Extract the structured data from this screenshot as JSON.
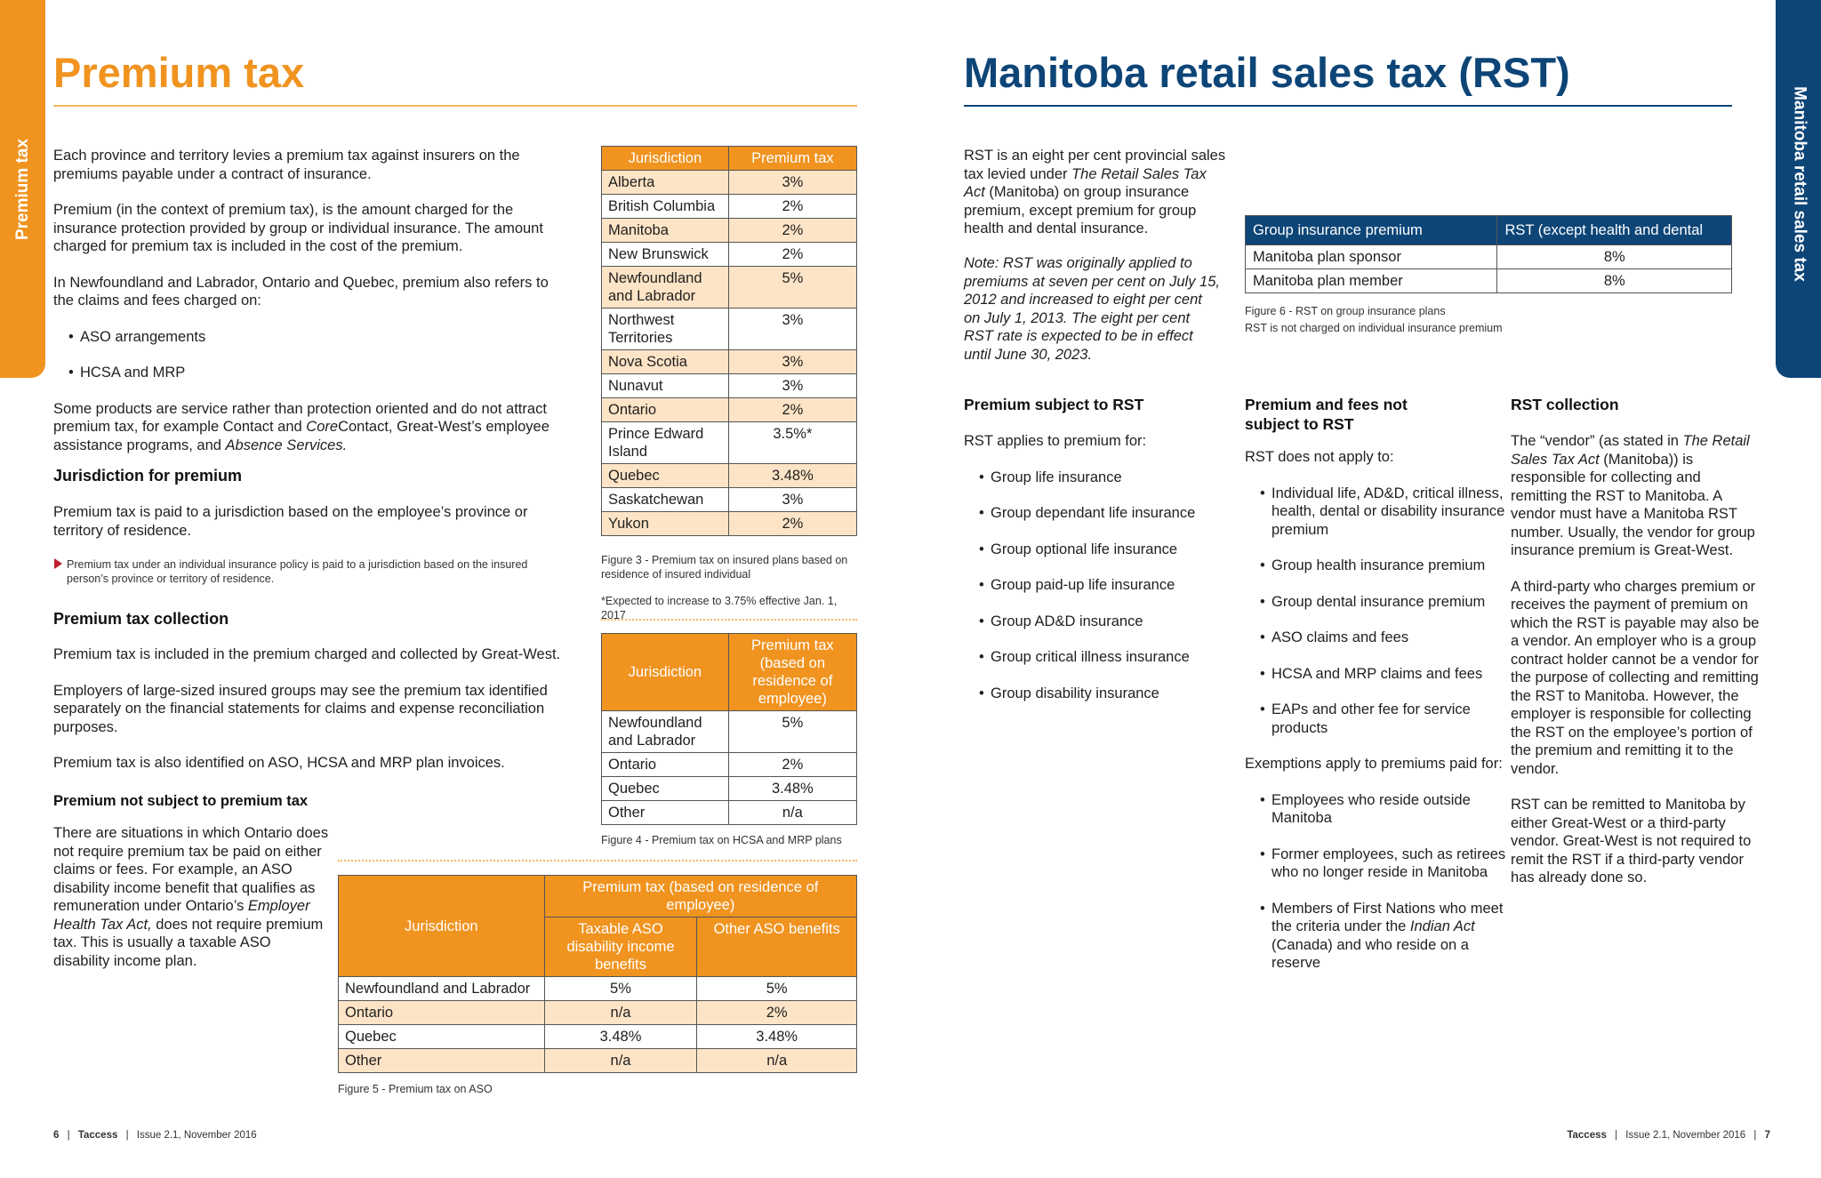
{
  "left_page": {
    "side_tab": "Premium tax",
    "title": "Premium tax",
    "intro": [
      "Each province and territory levies a premium tax against insurers on the premiums payable under a contract of insurance.",
      "Premium (in the context of premium tax), is the amount charged for the insurance protection provided by group or individual insurance. The amount charged for premium tax is included in the cost of the premium.",
      "In Newfoundland and Labrador, Ontario and Quebec, premium also refers to the claims and fees charged on:"
    ],
    "bullets": [
      "ASO arrangements",
      "HCSA and MRP"
    ],
    "products_para": {
      "a": "Some products are service rather than protection oriented and do not attract premium tax, for example Contact and ",
      "b": "Core",
      "c": "Contact, Great-West’s employee assistance programs, and ",
      "d": "Absence Services."
    },
    "jurisdiction_heading": "Jurisdiction for premium",
    "jurisdiction_para": "Premium tax is paid to a jurisdiction based on the employee’s province or territory of residence.",
    "jurisdiction_note": "Premium tax under an individual insurance policy is paid to a jurisdiction based on the insured person’s province or territory of residence.",
    "collection_heading": "Premium tax collection",
    "collection_paras": [
      "Premium tax is included in the premium charged and collected by Great-West.",
      "Employers of large-sized insured groups may see the premium tax identified separately on the financial statements for claims and expense reconciliation purposes.",
      "Premium tax is also identified on ASO, HCSA and MRP plan invoices."
    ],
    "not_subject_heading": "Premium not subject to premium tax",
    "not_subject_para": {
      "a": "There are situations in which Ontario does not require premium tax be paid on either claims or fees. For example, an ASO disability income benefit that qualifies as remuneration under Ontario’s ",
      "b": "Employer Health Tax Act,",
      "c": " does not require premium tax. This is usually a taxable ASO disability income plan."
    },
    "table3": {
      "headers": [
        "Jurisdiction",
        "Premium tax"
      ],
      "rows": [
        [
          "Alberta",
          "3%"
        ],
        [
          "British Columbia",
          "2%"
        ],
        [
          "Manitoba",
          "2%"
        ],
        [
          "New Brunswick",
          "2%"
        ],
        [
          "Newfoundland and Labrador",
          "5%"
        ],
        [
          "Northwest Territories",
          "3%"
        ],
        [
          "Nova Scotia",
          "3%"
        ],
        [
          "Nunavut",
          "3%"
        ],
        [
          "Ontario",
          "2%"
        ],
        [
          "Prince Edward Island",
          "3.5%*"
        ],
        [
          "Quebec",
          "3.48%"
        ],
        [
          "Saskatchewan",
          "3%"
        ],
        [
          "Yukon",
          "2%"
        ]
      ],
      "caption": "Figure 3 - Premium tax on insured plans based on residence of insured individual",
      "footnote": "*Expected to increase to 3.75% effective Jan. 1, 2017"
    },
    "table4": {
      "headers": [
        "Jurisdiction",
        "Premium tax (based on residence of employee)"
      ],
      "rows": [
        [
          "Newfoundland and Labrador",
          "5%"
        ],
        [
          "Ontario",
          "2%"
        ],
        [
          "Quebec",
          "3.48%"
        ],
        [
          "Other",
          "n/a"
        ]
      ],
      "caption": "Figure 4 - Premium tax on HCSA and MRP plans"
    },
    "table5": {
      "header_jurisdiction": "Jurisdiction",
      "header_group": "Premium tax (based on residence of employee)",
      "subheaders": [
        "Taxable ASO disability income benefits",
        "Other ASO benefits"
      ],
      "rows": [
        [
          "Newfoundland and Labrador",
          "5%",
          "5%"
        ],
        [
          "Ontario",
          "n/a",
          "2%"
        ],
        [
          "Quebec",
          "3.48%",
          "3.48%"
        ],
        [
          "Other",
          "n/a",
          "n/a"
        ]
      ],
      "caption": "Figure 5 - Premium tax on ASO"
    },
    "footer": {
      "page": "6",
      "brand": "Taccess",
      "issue": "Issue 2.1, November 2016"
    }
  },
  "right_page": {
    "side_tab": "Manitoba retail sales tax",
    "title": "Manitoba retail sales tax (RST)",
    "intro": {
      "a": "RST is an eight per cent provincial sales tax levied under ",
      "b": "The Retail Sales Tax Act",
      "c": " (Manitoba) on group insurance premium, except premium for group health and dental insurance."
    },
    "note": "Note: RST was originally applied to premiums at seven per cent on July 15, 2012 and increased to eight per cent on July 1, 2013. The eight per cent RST rate is expected to be in effect until June 30, 2023.",
    "table6": {
      "headers": [
        "Group insurance premium",
        "RST (except health and dental"
      ],
      "rows": [
        [
          "Manitoba plan sponsor",
          "8%"
        ],
        [
          "Manitoba plan member",
          "8%"
        ]
      ],
      "caption": "Figure 6 - RST on group insurance plans",
      "caption2": "RST is not charged on individual insurance premium"
    },
    "col1": {
      "heading": "Premium subject to RST",
      "lead": "RST applies to premium for:",
      "bullets": [
        "Group life insurance",
        "Group dependant life insurance",
        "Group optional life insurance",
        "Group paid-up life insurance",
        "Group AD&D insurance",
        "Group critical illness insurance",
        "Group disability insurance"
      ]
    },
    "col2": {
      "heading": "Premium and fees not subject to RST",
      "lead": "RST does not apply to:",
      "bullets": [
        "Individual life, AD&D, critical illness, health, dental or disability insurance premium",
        "Group health insurance premium",
        "Group dental insurance premium",
        "ASO claims and fees",
        "HCSA and MRP claims and fees",
        "EAPs and other fee for service products"
      ],
      "lead2": "Exemptions apply to premiums paid for:",
      "bullets2": [
        "Employees who reside outside Manitoba",
        "Former employees, such as retirees who no longer reside in Manitoba"
      ],
      "bullet_fn": {
        "a": "Members of First Nations who meet the criteria under the ",
        "b": "Indian Act",
        "c": " (Canada) and who reside on a reserve"
      }
    },
    "col3": {
      "heading": "RST collection",
      "p1": {
        "a": "The “vendor” (as stated in ",
        "b": "The Retail Sales Tax Act",
        "c": " (Manitoba)) is responsible for collecting and remitting the RST to Manitoba. A vendor must have a Manitoba RST number. Usually, the vendor for group insurance premium is Great-West."
      },
      "p2": "A third-party who charges premium or receives the payment of premium on which the RST is payable may also be a vendor. An employer who is a group contract holder cannot be a vendor for the purpose of collecting and remitting the RST to Manitoba. However, the employer is responsible for collecting the RST on the employee’s portion of the premium and remitting it to the vendor.",
      "p3": "RST can be remitted to Manitoba by either Great-West or a third-party vendor. Great-West is not required to remit the RST if a third-party vendor has already done so."
    },
    "footer": {
      "page": "7",
      "brand": "Taccess",
      "issue": "Issue 2.1, November 2016"
    }
  },
  "colors": {
    "orange": "#f0931f",
    "light_orange": "#fde4c6",
    "blue": "#0d4577",
    "note_arrow": "#c0202f"
  }
}
